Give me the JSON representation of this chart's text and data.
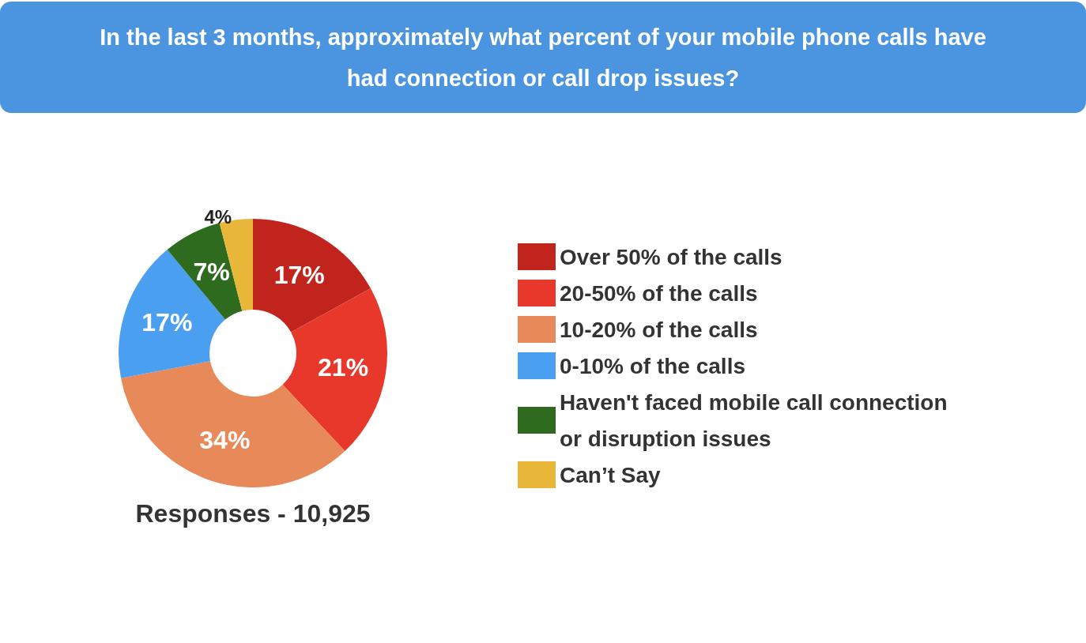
{
  "chart_data": {
    "type": "donut",
    "title": "In the last 3 months, approximately what percent of your mobile phone calls have had connection or call drop issues?",
    "categories": [
      "Over 50% of the calls",
      "20-50% of the calls",
      "10-20% of the calls",
      "0-10% of the calls",
      "Haven't faced mobile call connection or disruption issues",
      "Can’t Say"
    ],
    "values": [
      17,
      21,
      34,
      17,
      7,
      4
    ],
    "value_labels": [
      "17%",
      "21%",
      "34%",
      "17%",
      "7%",
      "4%"
    ],
    "colors": [
      "#c0241c",
      "#e8382b",
      "#e8895a",
      "#4a9ff0",
      "#2e6b1e",
      "#e8b73a"
    ],
    "legend": "right",
    "annotations": [
      "Responses - 10,925"
    ]
  }
}
